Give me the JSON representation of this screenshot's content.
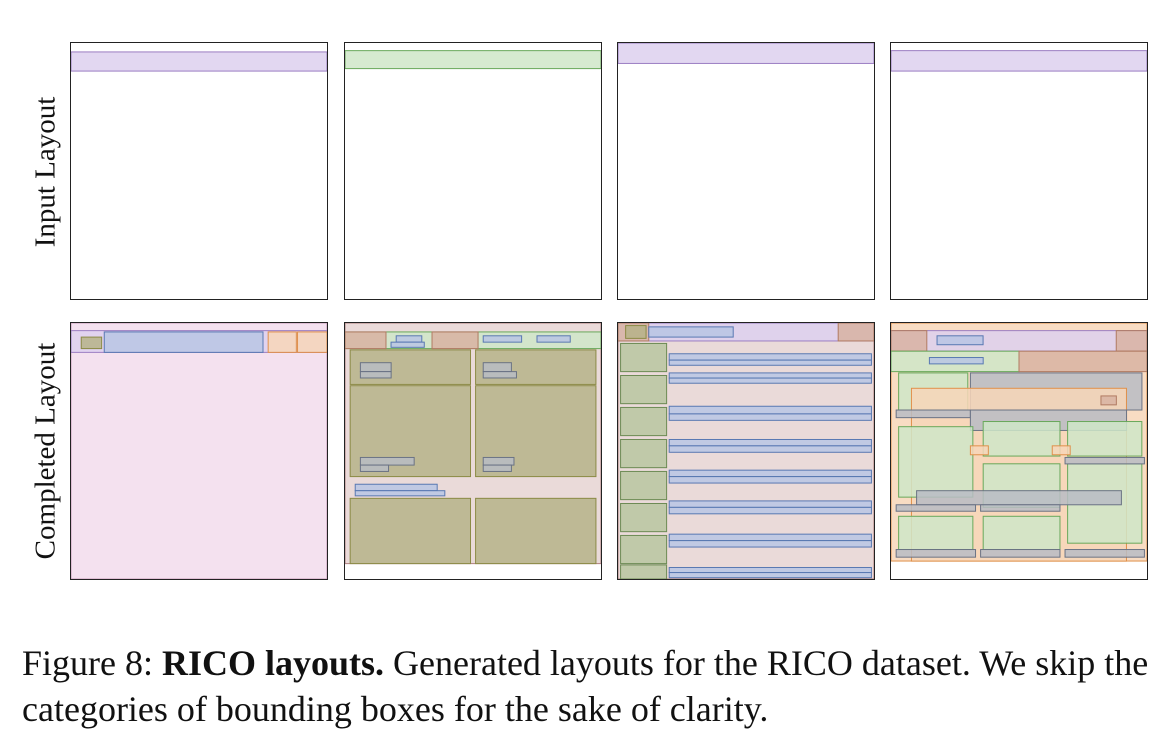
{
  "figure": {
    "row_labels": {
      "input": "Input Layout",
      "completed": "Completed Layout"
    },
    "caption": {
      "prefix": "Figure 8: ",
      "bold": "RICO layouts.",
      "rest": " Generated layouts for the RICO dataset. We skip the categories of bounding boxes for the sake of clarity."
    }
  },
  "colors": {
    "purple": {
      "fill": "#ddd0ee",
      "stroke": "#9a7cc2"
    },
    "green": {
      "fill": "#cfe6c8",
      "stroke": "#68a85a"
    },
    "pink": {
      "fill": "#f2dcec",
      "stroke": "#c99ab8"
    },
    "blue": {
      "fill": "#b8c6e4",
      "stroke": "#5878b2"
    },
    "olive": {
      "fill": "#b6b388",
      "stroke": "#8a8a44"
    },
    "brown": {
      "fill": "#d8b3a2",
      "stroke": "#b07a62"
    },
    "orange": {
      "fill": "#f7d6b8",
      "stroke": "#e0904a"
    },
    "rose": {
      "fill": "#e6d4d2",
      "stroke": "#b08080"
    },
    "sage": {
      "fill": "#b8c6a0",
      "stroke": "#6c8a54"
    },
    "slate": {
      "fill": "#b8bcc4",
      "stroke": "#6a7284"
    }
  },
  "layouts": {
    "input": [
      [
        {
          "c": "purple",
          "b": [
            0.0,
            0.035,
            1.0,
            0.11
          ]
        }
      ],
      [
        {
          "c": "green",
          "b": [
            0.0,
            0.03,
            1.0,
            0.1
          ]
        }
      ],
      [
        {
          "c": "purple",
          "b": [
            0.0,
            0.0,
            1.0,
            0.08
          ]
        }
      ],
      [
        {
          "c": "purple",
          "b": [
            0.0,
            0.03,
            1.0,
            0.11
          ]
        }
      ]
    ],
    "completed": [
      [
        {
          "c": "pink",
          "b": [
            0.0,
            0.0,
            1.0,
            1.0
          ]
        },
        {
          "c": "purple",
          "b": [
            0.0,
            0.03,
            1.0,
            0.115
          ]
        },
        {
          "c": "olive",
          "b": [
            0.04,
            0.055,
            0.12,
            0.1
          ]
        },
        {
          "c": "blue",
          "b": [
            0.13,
            0.035,
            0.75,
            0.115
          ]
        },
        {
          "c": "orange",
          "b": [
            0.77,
            0.035,
            0.88,
            0.115
          ]
        },
        {
          "c": "orange",
          "b": [
            0.885,
            0.035,
            1.0,
            0.115
          ]
        }
      ],
      [
        {
          "c": "rose",
          "b": [
            0.0,
            0.0,
            1.0,
            0.94
          ]
        },
        {
          "c": "green",
          "b": [
            0.0,
            0.035,
            1.0,
            0.1
          ]
        },
        {
          "c": "brown",
          "b": [
            0.0,
            0.035,
            0.16,
            0.1
          ]
        },
        {
          "c": "brown",
          "b": [
            0.34,
            0.035,
            0.52,
            0.1
          ]
        },
        {
          "c": "blue",
          "b": [
            0.2,
            0.05,
            0.3,
            0.075
          ]
        },
        {
          "c": "blue",
          "b": [
            0.18,
            0.075,
            0.31,
            0.095
          ]
        },
        {
          "c": "blue",
          "b": [
            0.54,
            0.05,
            0.69,
            0.075
          ]
        },
        {
          "c": "blue",
          "b": [
            0.75,
            0.05,
            0.88,
            0.075
          ]
        },
        {
          "c": "olive",
          "b": [
            0.02,
            0.105,
            0.49,
            0.24
          ]
        },
        {
          "c": "olive",
          "b": [
            0.51,
            0.105,
            0.98,
            0.24
          ]
        },
        {
          "c": "olive",
          "b": [
            0.02,
            0.245,
            0.49,
            0.6
          ]
        },
        {
          "c": "olive",
          "b": [
            0.51,
            0.245,
            0.98,
            0.6
          ]
        },
        {
          "c": "slate",
          "b": [
            0.06,
            0.155,
            0.18,
            0.19
          ]
        },
        {
          "c": "slate",
          "b": [
            0.06,
            0.19,
            0.18,
            0.215
          ]
        },
        {
          "c": "slate",
          "b": [
            0.54,
            0.155,
            0.65,
            0.19
          ]
        },
        {
          "c": "slate",
          "b": [
            0.54,
            0.19,
            0.67,
            0.215
          ]
        },
        {
          "c": "slate",
          "b": [
            0.06,
            0.525,
            0.27,
            0.555
          ]
        },
        {
          "c": "slate",
          "b": [
            0.06,
            0.555,
            0.17,
            0.58
          ]
        },
        {
          "c": "slate",
          "b": [
            0.54,
            0.525,
            0.66,
            0.555
          ]
        },
        {
          "c": "slate",
          "b": [
            0.54,
            0.555,
            0.65,
            0.58
          ]
        },
        {
          "c": "blue",
          "b": [
            0.04,
            0.63,
            0.36,
            0.655
          ]
        },
        {
          "c": "blue",
          "b": [
            0.04,
            0.655,
            0.39,
            0.675
          ]
        },
        {
          "c": "olive",
          "b": [
            0.02,
            0.685,
            0.49,
            0.94
          ]
        },
        {
          "c": "olive",
          "b": [
            0.51,
            0.685,
            0.98,
            0.94
          ]
        }
      ],
      [
        {
          "c": "rose",
          "b": [
            0.0,
            0.0,
            1.0,
            1.0
          ]
        },
        {
          "c": "purple",
          "b": [
            0.0,
            0.0,
            1.0,
            0.07
          ]
        },
        {
          "c": "brown",
          "b": [
            0.0,
            0.0,
            0.12,
            0.07
          ]
        },
        {
          "c": "olive",
          "b": [
            0.03,
            0.01,
            0.11,
            0.06
          ]
        },
        {
          "c": "blue",
          "b": [
            0.12,
            0.015,
            0.45,
            0.055
          ]
        },
        {
          "c": "brown",
          "b": [
            0.86,
            0.0,
            1.0,
            0.07
          ]
        },
        {
          "c": "sage",
          "b": [
            0.01,
            0.08,
            0.19,
            0.19
          ]
        },
        {
          "c": "sage",
          "b": [
            0.01,
            0.205,
            0.19,
            0.315
          ]
        },
        {
          "c": "sage",
          "b": [
            0.01,
            0.33,
            0.19,
            0.44
          ]
        },
        {
          "c": "sage",
          "b": [
            0.01,
            0.455,
            0.19,
            0.565
          ]
        },
        {
          "c": "sage",
          "b": [
            0.01,
            0.58,
            0.19,
            0.69
          ]
        },
        {
          "c": "sage",
          "b": [
            0.01,
            0.705,
            0.19,
            0.815
          ]
        },
        {
          "c": "sage",
          "b": [
            0.01,
            0.83,
            0.19,
            0.94
          ]
        },
        {
          "c": "sage",
          "b": [
            0.01,
            0.945,
            0.19,
            1.0
          ]
        },
        {
          "c": "blue",
          "b": [
            0.2,
            0.12,
            0.99,
            0.145
          ]
        },
        {
          "c": "blue",
          "b": [
            0.2,
            0.145,
            0.99,
            0.165
          ]
        },
        {
          "c": "blue",
          "b": [
            0.2,
            0.195,
            0.99,
            0.215
          ]
        },
        {
          "c": "blue",
          "b": [
            0.2,
            0.215,
            0.99,
            0.235
          ]
        },
        {
          "c": "blue",
          "b": [
            0.2,
            0.325,
            0.99,
            0.355
          ]
        },
        {
          "c": "blue",
          "b": [
            0.2,
            0.355,
            0.99,
            0.38
          ]
        },
        {
          "c": "blue",
          "b": [
            0.2,
            0.455,
            0.99,
            0.48
          ]
        },
        {
          "c": "blue",
          "b": [
            0.2,
            0.48,
            0.99,
            0.505
          ]
        },
        {
          "c": "blue",
          "b": [
            0.2,
            0.575,
            0.99,
            0.6
          ]
        },
        {
          "c": "blue",
          "b": [
            0.2,
            0.6,
            0.99,
            0.625
          ]
        },
        {
          "c": "blue",
          "b": [
            0.2,
            0.695,
            0.99,
            0.72
          ]
        },
        {
          "c": "blue",
          "b": [
            0.2,
            0.72,
            0.99,
            0.745
          ]
        },
        {
          "c": "blue",
          "b": [
            0.2,
            0.825,
            0.99,
            0.85
          ]
        },
        {
          "c": "blue",
          "b": [
            0.2,
            0.85,
            0.99,
            0.875
          ]
        },
        {
          "c": "blue",
          "b": [
            0.2,
            0.955,
            0.99,
            0.975
          ]
        },
        {
          "c": "blue",
          "b": [
            0.2,
            0.975,
            0.99,
            0.995
          ]
        }
      ],
      [
        {
          "c": "orange",
          "b": [
            0.0,
            0.0,
            1.0,
            0.93
          ]
        },
        {
          "c": "purple",
          "b": [
            0.0,
            0.03,
            1.0,
            0.11
          ]
        },
        {
          "c": "brown",
          "b": [
            0.0,
            0.03,
            0.14,
            0.11
          ]
        },
        {
          "c": "blue",
          "b": [
            0.18,
            0.05,
            0.36,
            0.085
          ]
        },
        {
          "c": "brown",
          "b": [
            0.88,
            0.03,
            1.0,
            0.11
          ]
        },
        {
          "c": "green",
          "b": [
            0.0,
            0.11,
            0.5,
            0.19
          ]
        },
        {
          "c": "blue",
          "b": [
            0.15,
            0.135,
            0.36,
            0.16
          ]
        },
        {
          "c": "brown",
          "b": [
            0.5,
            0.11,
            1.0,
            0.19
          ]
        },
        {
          "c": "green",
          "b": [
            0.03,
            0.195,
            0.3,
            0.34
          ]
        },
        {
          "c": "slate",
          "b": [
            0.31,
            0.195,
            0.98,
            0.34
          ]
        },
        {
          "c": "orange",
          "b": [
            0.08,
            0.255,
            0.92,
            0.93
          ]
        },
        {
          "c": "slate",
          "b": [
            0.02,
            0.34,
            0.31,
            0.37
          ]
        },
        {
          "c": "slate",
          "b": [
            0.31,
            0.34,
            0.92,
            0.42
          ]
        },
        {
          "c": "brown",
          "b": [
            0.82,
            0.285,
            0.88,
            0.32
          ]
        },
        {
          "c": "green",
          "b": [
            0.03,
            0.405,
            0.32,
            0.68
          ]
        },
        {
          "c": "green",
          "b": [
            0.36,
            0.385,
            0.66,
            0.52
          ]
        },
        {
          "c": "green",
          "b": [
            0.69,
            0.385,
            0.98,
            0.52
          ]
        },
        {
          "c": "orange",
          "b": [
            0.31,
            0.48,
            0.38,
            0.515
          ]
        },
        {
          "c": "orange",
          "b": [
            0.63,
            0.48,
            0.7,
            0.515
          ]
        },
        {
          "c": "green",
          "b": [
            0.36,
            0.55,
            0.66,
            0.72
          ]
        },
        {
          "c": "green",
          "b": [
            0.69,
            0.55,
            0.98,
            0.86
          ]
        },
        {
          "c": "slate",
          "b": [
            0.1,
            0.655,
            0.9,
            0.71
          ]
        },
        {
          "c": "slate",
          "b": [
            0.02,
            0.71,
            0.33,
            0.735
          ]
        },
        {
          "c": "slate",
          "b": [
            0.35,
            0.71,
            0.66,
            0.735
          ]
        },
        {
          "c": "green",
          "b": [
            0.03,
            0.755,
            0.32,
            0.885
          ]
        },
        {
          "c": "green",
          "b": [
            0.36,
            0.755,
            0.66,
            0.885
          ]
        },
        {
          "c": "slate",
          "b": [
            0.02,
            0.885,
            0.33,
            0.915
          ]
        },
        {
          "c": "slate",
          "b": [
            0.35,
            0.885,
            0.66,
            0.915
          ]
        },
        {
          "c": "slate",
          "b": [
            0.68,
            0.885,
            0.99,
            0.915
          ]
        },
        {
          "c": "slate",
          "b": [
            0.68,
            0.525,
            0.99,
            0.55
          ]
        }
      ]
    ]
  }
}
